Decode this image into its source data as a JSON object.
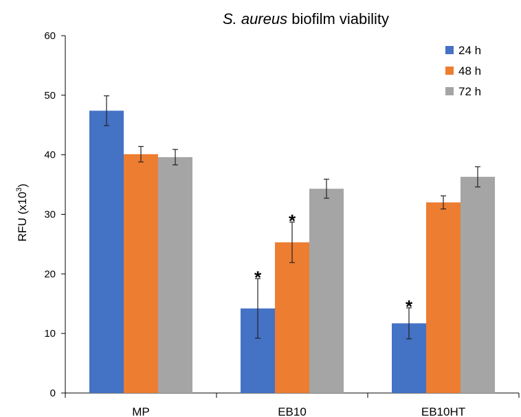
{
  "chart_data": {
    "type": "bar",
    "title_italic": "S. aureus",
    "title_rest": " biofilm viability",
    "xlabel": "",
    "ylabel_main": "RFU (x10",
    "ylabel_sup": "3",
    "ylabel_end": ")",
    "ylim": [
      0,
      60
    ],
    "yticks": [
      0,
      10,
      20,
      30,
      40,
      50,
      60
    ],
    "categories": [
      "MP",
      "EB10",
      "EB10HT"
    ],
    "series": [
      {
        "name": "24 h",
        "color": "#4472C4",
        "values": [
          47.4,
          14.2,
          11.7
        ],
        "errors": [
          2.5,
          5.0,
          2.6
        ],
        "significant": [
          false,
          true,
          true
        ]
      },
      {
        "name": "48 h",
        "color": "#ED7D31",
        "values": [
          40.1,
          25.3,
          32.0
        ],
        "errors": [
          1.3,
          3.4,
          1.1
        ],
        "significant": [
          false,
          true,
          false
        ]
      },
      {
        "name": "72 h",
        "color": "#A5A5A5",
        "values": [
          39.6,
          34.3,
          36.3
        ],
        "errors": [
          1.3,
          1.6,
          1.7
        ],
        "significant": [
          false,
          false,
          false
        ]
      }
    ],
    "significance_marker": "*",
    "legend_position": "top-right",
    "grid": false
  }
}
